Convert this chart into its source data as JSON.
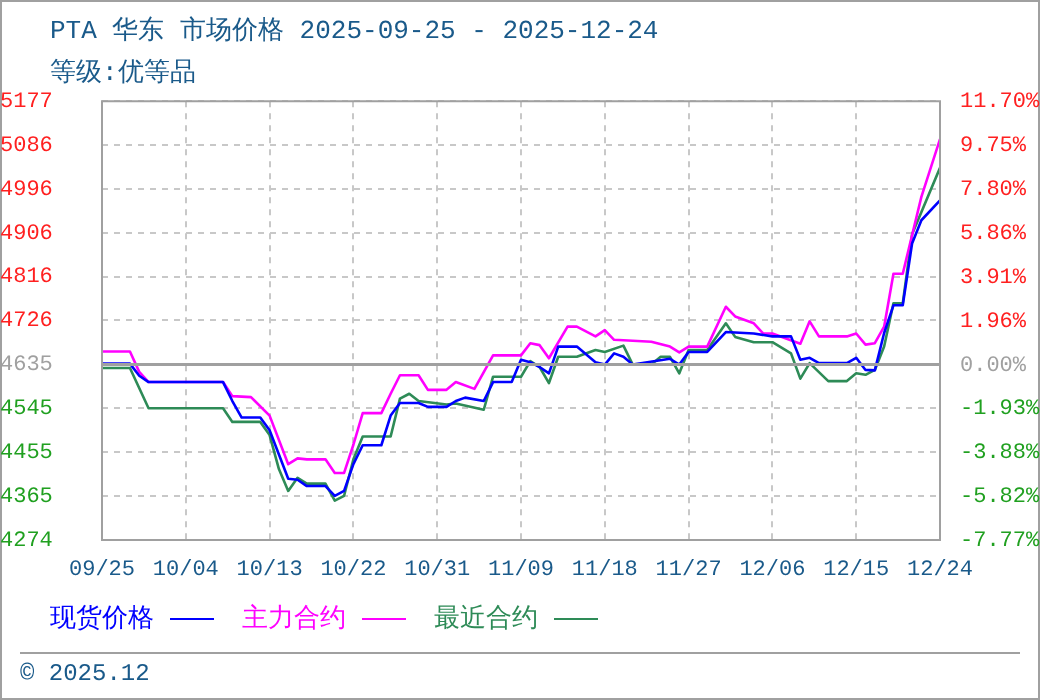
{
  "chart_data": {
    "type": "line",
    "title": "PTA 华东 市场价格 2025-09-25 - 2025-12-24",
    "subtitle": "等级:优等品",
    "annotations": [
      "© 2025.12"
    ],
    "xlim": [
      "2025-09-25",
      "2025-12-24"
    ],
    "xticks": [
      {
        "value": "2025-09-25",
        "label": "09/25"
      },
      {
        "value": "2025-10-04",
        "label": "10/04"
      },
      {
        "value": "2025-10-13",
        "label": "10/13"
      },
      {
        "value": "2025-10-22",
        "label": "10/22"
      },
      {
        "value": "2025-10-31",
        "label": "10/31"
      },
      {
        "value": "2025-11-09",
        "label": "11/09"
      },
      {
        "value": "2025-11-18",
        "label": "11/18"
      },
      {
        "value": "2025-11-27",
        "label": "11/27"
      },
      {
        "value": "2025-12-06",
        "label": "12/06"
      },
      {
        "value": "2025-12-15",
        "label": "12/15"
      },
      {
        "value": "2025-12-24",
        "label": "12/24"
      }
    ],
    "ylim": [
      4274,
      5177
    ],
    "yticks": [
      4274,
      4365,
      4455,
      4545,
      4635,
      4726,
      4816,
      4906,
      4996,
      5086,
      5177
    ],
    "y2lim": [
      -7.77,
      11.7
    ],
    "y2ticks": [
      {
        "value": -7.77,
        "label": "-7.77%"
      },
      {
        "value": -5.82,
        "label": "-5.82%"
      },
      {
        "value": -3.88,
        "label": "-3.88%"
      },
      {
        "value": -1.93,
        "label": "-1.93%"
      },
      {
        "value": 0,
        "label": "0.00%"
      },
      {
        "value": 1.96,
        "label": "1.96%"
      },
      {
        "value": 3.91,
        "label": "3.91%"
      },
      {
        "value": 5.86,
        "label": "5.86%"
      },
      {
        "value": 7.8,
        "label": "7.80%"
      },
      {
        "value": 9.75,
        "label": "9.75%"
      },
      {
        "value": 11.7,
        "label": "11.70%"
      }
    ],
    "ref_lines": [
      {
        "axis": "y",
        "value": 4635,
        "color": "#a0a0a0"
      }
    ],
    "grid": true,
    "legend": "bottom",
    "marker": "none",
    "line_style": "solid",
    "series": [
      {
        "name": "现货价格",
        "color": "#0000ff",
        "x": [
          "2025-09-25",
          "2025-09-28",
          "2025-09-29",
          "2025-09-30",
          "2025-10-08",
          "2025-10-09",
          "2025-10-10",
          "2025-10-12",
          "2025-10-13",
          "2025-10-14",
          "2025-10-15",
          "2025-10-16",
          "2025-10-17",
          "2025-10-19",
          "2025-10-20",
          "2025-10-21",
          "2025-10-22",
          "2025-10-23",
          "2025-10-25",
          "2025-10-26",
          "2025-10-27",
          "2025-10-29",
          "2025-10-30",
          "2025-11-01",
          "2025-11-02",
          "2025-11-03",
          "2025-11-05",
          "2025-11-06",
          "2025-11-08",
          "2025-11-09",
          "2025-11-10",
          "2025-11-11",
          "2025-11-12",
          "2025-11-13",
          "2025-11-15",
          "2025-11-17",
          "2025-11-18",
          "2025-11-19",
          "2025-11-20",
          "2025-11-21",
          "2025-11-25",
          "2025-11-26",
          "2025-11-27",
          "2025-11-29",
          "2025-12-01",
          "2025-12-04",
          "2025-12-06",
          "2025-12-08",
          "2025-12-09",
          "2025-12-10",
          "2025-12-11",
          "2025-12-14",
          "2025-12-15",
          "2025-12-16",
          "2025-12-17",
          "2025-12-18",
          "2025-12-19",
          "2025-12-20",
          "2025-12-21",
          "2025-12-22",
          "2025-12-24"
        ],
        "values": [
          4637,
          4637,
          4612,
          4599,
          4599,
          4560,
          4526,
          4526,
          4500,
          4450,
          4400,
          4398,
          4385,
          4385,
          4365,
          4375,
          4430,
          4469,
          4469,
          4530,
          4556,
          4556,
          4548,
          4548,
          4560,
          4567,
          4560,
          4599,
          4599,
          4645,
          4640,
          4630,
          4617,
          4672,
          4672,
          4640,
          4635,
          4658,
          4651,
          4635,
          4647,
          4635,
          4661,
          4661,
          4702,
          4699,
          4693,
          4693,
          4645,
          4649,
          4638,
          4638,
          4649,
          4624,
          4623,
          4700,
          4757,
          4757,
          4884,
          4932,
          4973
        ]
      },
      {
        "name": "主力合约",
        "color": "#ff00ff",
        "x": [
          "2025-09-25",
          "2025-09-28",
          "2025-09-29",
          "2025-09-30",
          "2025-10-08",
          "2025-10-09",
          "2025-10-11",
          "2025-10-13",
          "2025-10-15",
          "2025-10-16",
          "2025-10-17",
          "2025-10-19",
          "2025-10-20",
          "2025-10-21",
          "2025-10-22",
          "2025-10-23",
          "2025-10-25",
          "2025-10-26",
          "2025-10-27",
          "2025-10-29",
          "2025-10-30",
          "2025-11-01",
          "2025-11-02",
          "2025-11-04",
          "2025-11-06",
          "2025-11-09",
          "2025-11-10",
          "2025-11-11",
          "2025-11-12",
          "2025-11-14",
          "2025-11-15",
          "2025-11-17",
          "2025-11-18",
          "2025-11-19",
          "2025-11-23",
          "2025-11-25",
          "2025-11-26",
          "2025-11-27",
          "2025-11-29",
          "2025-12-01",
          "2025-12-02",
          "2025-12-04",
          "2025-12-05",
          "2025-12-06",
          "2025-12-09",
          "2025-12-10",
          "2025-12-11",
          "2025-12-14",
          "2025-12-15",
          "2025-12-16",
          "2025-12-17",
          "2025-12-18",
          "2025-12-19",
          "2025-12-20",
          "2025-12-22",
          "2025-12-24"
        ],
        "values": [
          4662,
          4662,
          4620,
          4599,
          4599,
          4570,
          4568,
          4530,
          4430,
          4442,
          4440,
          4440,
          4412,
          4412,
          4470,
          4535,
          4535,
          4575,
          4613,
          4613,
          4583,
          4583,
          4599,
          4585,
          4654,
          4654,
          4679,
          4675,
          4648,
          4713,
          4713,
          4693,
          4706,
          4686,
          4682,
          4672,
          4660,
          4672,
          4672,
          4754,
          4734,
          4720,
          4699,
          4699,
          4678,
          4724,
          4693,
          4693,
          4699,
          4676,
          4679,
          4713,
          4822,
          4822,
          4980,
          5099
        ]
      },
      {
        "name": "最近合约",
        "color": "#2e8b57",
        "x": [
          "2025-09-25",
          "2025-09-28",
          "2025-09-30",
          "2025-10-08",
          "2025-10-09",
          "2025-10-12",
          "2025-10-13",
          "2025-10-14",
          "2025-10-15",
          "2025-10-16",
          "2025-10-17",
          "2025-10-19",
          "2025-10-20",
          "2025-10-21",
          "2025-10-22",
          "2025-10-23",
          "2025-10-26",
          "2025-10-27",
          "2025-10-28",
          "2025-10-29",
          "2025-11-01",
          "2025-11-02",
          "2025-11-05",
          "2025-11-06",
          "2025-11-09",
          "2025-11-10",
          "2025-11-11",
          "2025-11-12",
          "2025-11-13",
          "2025-11-15",
          "2025-11-17",
          "2025-11-18",
          "2025-11-20",
          "2025-11-21",
          "2025-11-23",
          "2025-11-24",
          "2025-11-25",
          "2025-11-26",
          "2025-11-27",
          "2025-11-29",
          "2025-12-01",
          "2025-12-02",
          "2025-12-04",
          "2025-12-06",
          "2025-12-08",
          "2025-12-09",
          "2025-12-10",
          "2025-12-12",
          "2025-12-14",
          "2025-12-15",
          "2025-12-16",
          "2025-12-17",
          "2025-12-18",
          "2025-12-19",
          "2025-12-20",
          "2025-12-21",
          "2025-12-24"
        ],
        "values": [
          4628,
          4628,
          4545,
          4545,
          4517,
          4517,
          4490,
          4420,
          4375,
          4402,
          4390,
          4390,
          4355,
          4365,
          4440,
          4487,
          4487,
          4565,
          4575,
          4560,
          4553,
          4555,
          4542,
          4610,
          4610,
          4642,
          4630,
          4597,
          4651,
          4651,
          4665,
          4661,
          4674,
          4635,
          4635,
          4651,
          4651,
          4617,
          4665,
          4665,
          4720,
          4692,
          4681,
          4681,
          4658,
          4606,
          4638,
          4601,
          4601,
          4617,
          4614,
          4624,
          4672,
          4761,
          4761,
          4903,
          5040
        ]
      }
    ]
  }
}
